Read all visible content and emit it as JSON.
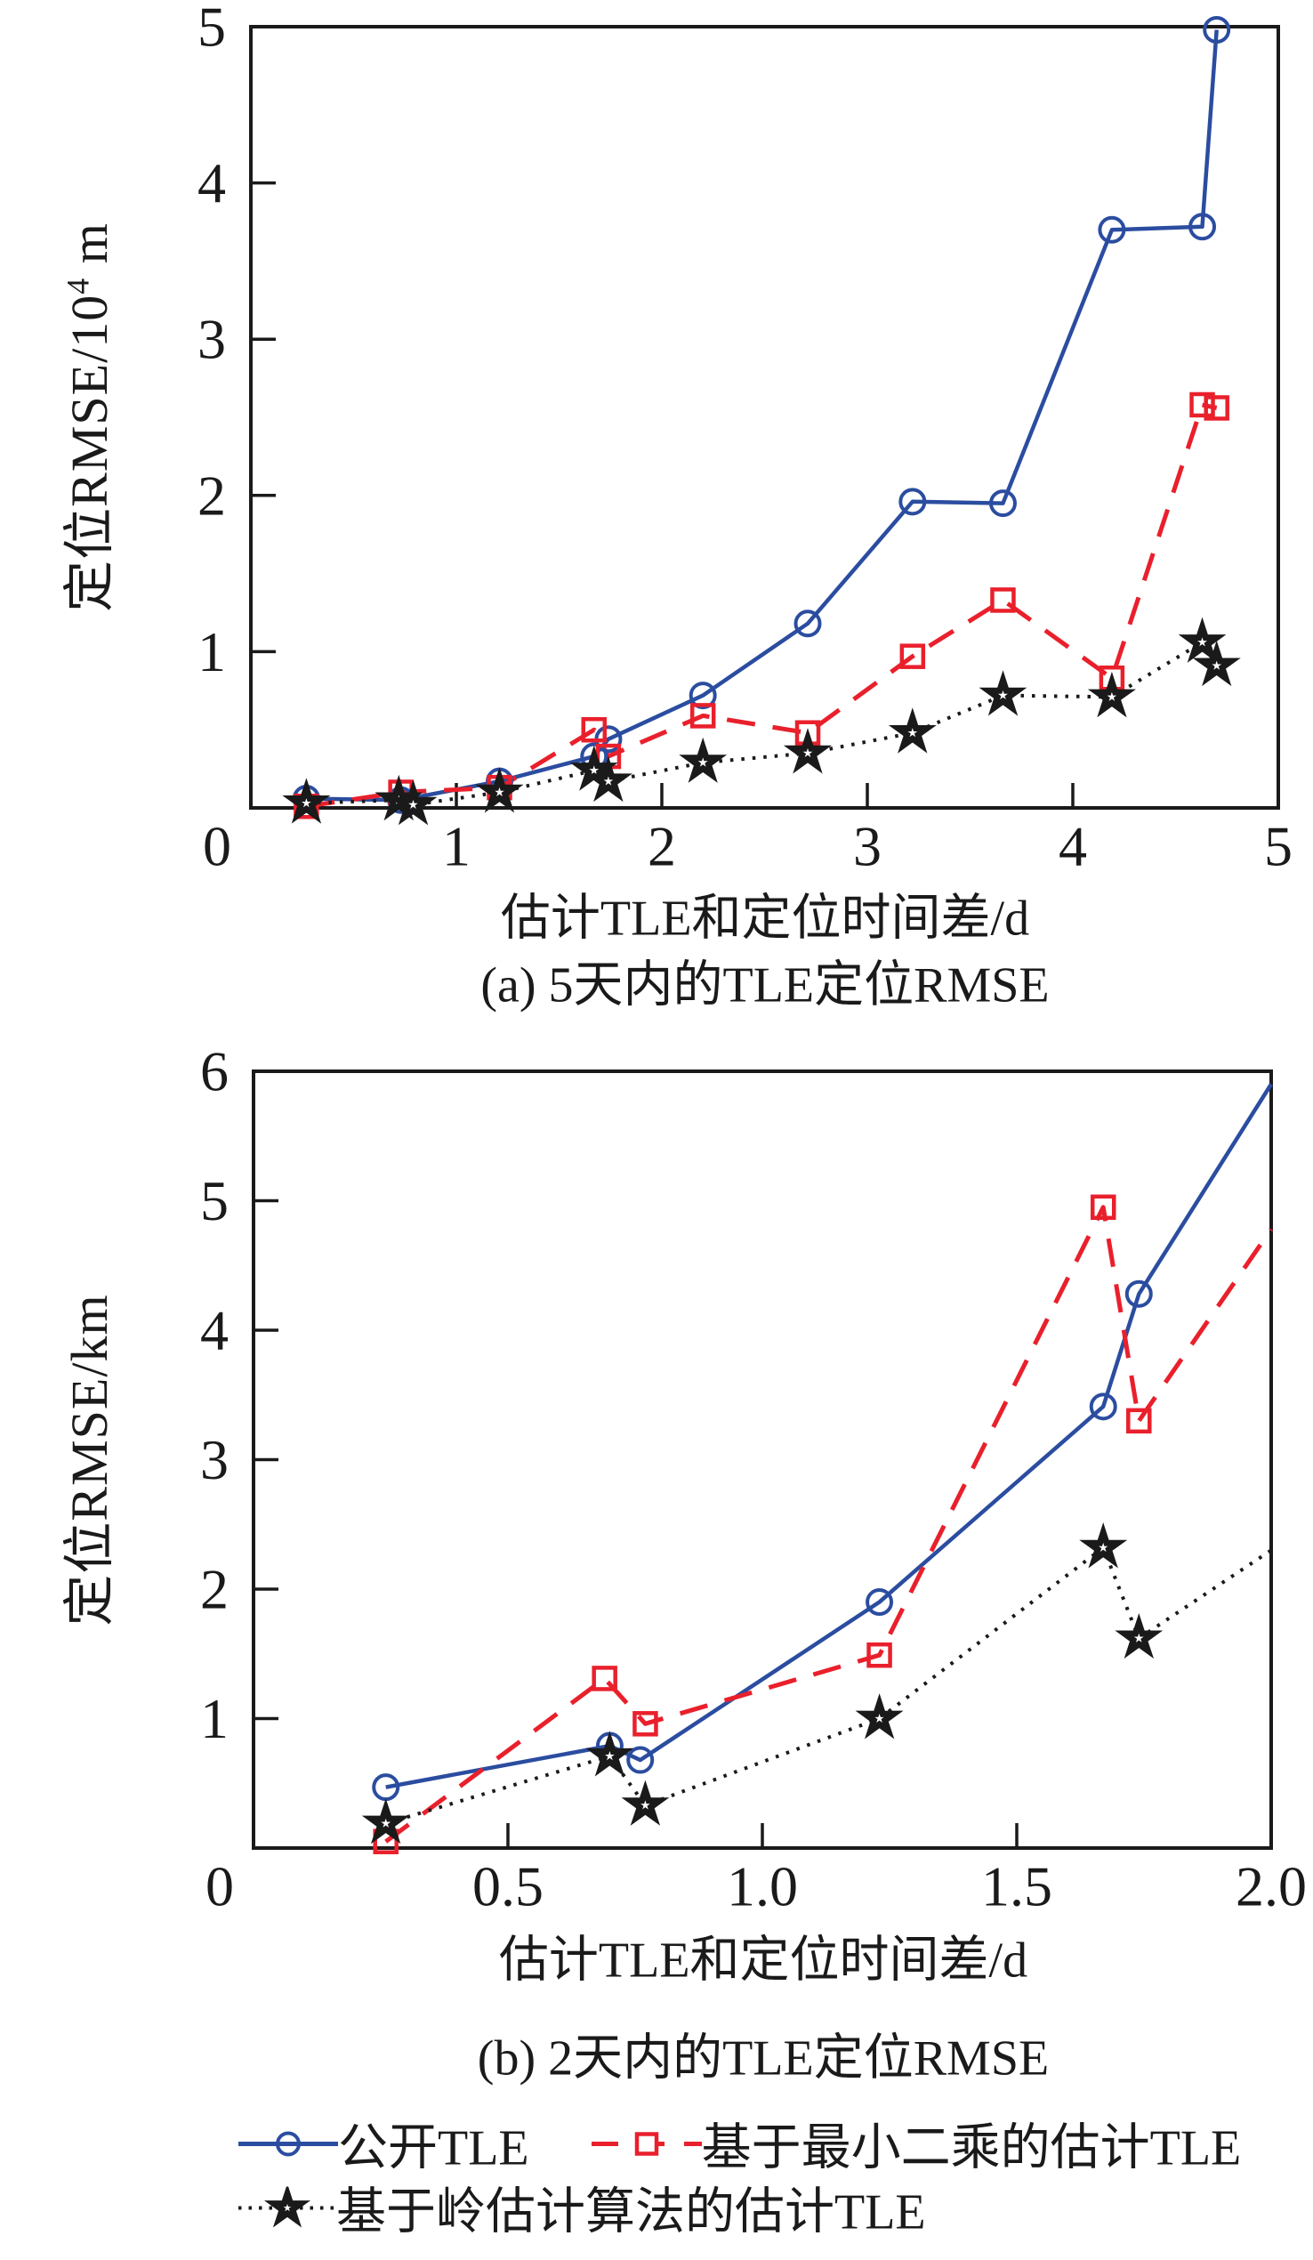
{
  "figure": {
    "background": "#ffffff",
    "axis_color": "#1a1a1a"
  },
  "colors": {
    "blue": "#2b4da0",
    "red": "#e9202c",
    "black": "#1a1a1a",
    "white": "#ffffff"
  },
  "chart_data": [
    {
      "id": "a",
      "type": "line",
      "title": "(a) 5天内的TLE定位RMSE",
      "xlabel": "估计TLE和定位时间差/d",
      "ylabel": "定位RMSE/10⁴ m",
      "ylabel_parts": {
        "base": "定位RMSE/10",
        "sup": "4",
        "tail": " m"
      },
      "xlim": [
        0,
        5
      ],
      "ylim": [
        0,
        5
      ],
      "xticks": [
        0,
        1,
        2,
        3,
        4,
        5
      ],
      "xtick_labels": [
        "0",
        "1",
        "2",
        "3",
        "4",
        "5"
      ],
      "yticks": [
        1,
        2,
        3,
        4,
        5
      ],
      "ytick_labels": [
        "1",
        "2",
        "3",
        "4",
        "5"
      ],
      "grid": false,
      "legend_position": "below-figure",
      "series": [
        {
          "name": "公开TLE",
          "slug": "public-tle",
          "color": "blue",
          "marker": "circle",
          "line": "solid",
          "points": [
            [
              0.27,
              0.06
            ],
            [
              0.73,
              0.05
            ],
            [
              1.21,
              0.17
            ],
            [
              1.67,
              0.33
            ],
            [
              1.74,
              0.44
            ],
            [
              2.2,
              0.72
            ],
            [
              2.71,
              1.18
            ],
            [
              3.22,
              1.96
            ],
            [
              3.66,
              1.95
            ],
            [
              4.19,
              3.7
            ],
            [
              4.63,
              3.72
            ],
            [
              4.7,
              4.98
            ]
          ]
        },
        {
          "name": "基于最小二乘的估计TLE",
          "slug": "ls-tle",
          "color": "red",
          "marker": "square",
          "line": "dashed",
          "points": [
            [
              0.27,
              0.01
            ],
            [
              0.73,
              0.1
            ],
            [
              1.21,
              0.13
            ],
            [
              1.67,
              0.5
            ],
            [
              1.74,
              0.33
            ],
            [
              2.2,
              0.59
            ],
            [
              2.71,
              0.48
            ],
            [
              3.22,
              0.97
            ],
            [
              3.66,
              1.33
            ],
            [
              4.19,
              0.83
            ],
            [
              4.63,
              2.58
            ],
            [
              4.7,
              2.56
            ]
          ]
        },
        {
          "name": "基于岭估计算法的估计TLE",
          "slug": "ridge-tle",
          "color": "black",
          "marker": "star",
          "line": "dotted",
          "points": [
            [
              0.27,
              0.03
            ],
            [
              0.72,
              0.05
            ],
            [
              0.79,
              0.02
            ],
            [
              1.21,
              0.1
            ],
            [
              1.67,
              0.24
            ],
            [
              1.74,
              0.17
            ],
            [
              2.2,
              0.29
            ],
            [
              2.71,
              0.35
            ],
            [
              3.22,
              0.48
            ],
            [
              3.66,
              0.72
            ],
            [
              4.19,
              0.71
            ],
            [
              4.63,
              1.06
            ],
            [
              4.7,
              0.91
            ]
          ]
        }
      ]
    },
    {
      "id": "b",
      "type": "line",
      "title": "(b) 2天内的TLE定位RMSE",
      "xlabel": "估计TLE和定位时间差/d",
      "ylabel": "定位RMSE/km",
      "ylabel_parts": {
        "base": "定位RMSE/km",
        "sup": "",
        "tail": ""
      },
      "xlim": [
        0,
        2
      ],
      "ylim": [
        0,
        6
      ],
      "xticks": [
        0,
        0.5,
        1,
        1.5,
        2
      ],
      "xtick_labels": [
        "0",
        "0.5",
        "1.0",
        "1.5",
        "2.0"
      ],
      "yticks": [
        1,
        2,
        3,
        4,
        5,
        6
      ],
      "ytick_labels": [
        "1",
        "2",
        "3",
        "4",
        "5",
        "6"
      ],
      "grid": false,
      "legend_position": "below-figure",
      "series": [
        {
          "name": "公开TLE",
          "slug": "public-tle",
          "color": "blue",
          "marker": "circle",
          "line": "solid",
          "points": [
            [
              0.26,
              0.47
            ],
            [
              0.7,
              0.79
            ],
            [
              0.76,
              0.68
            ],
            [
              1.23,
              1.9
            ],
            [
              1.67,
              3.41
            ],
            [
              1.74,
              4.28
            ]
          ],
          "tail": [
            2.0,
            5.9
          ]
        },
        {
          "name": "基于最小二乘的估计TLE",
          "slug": "ls-tle",
          "color": "red",
          "marker": "square",
          "line": "dashed",
          "points": [
            [
              0.26,
              0.05
            ],
            [
              0.69,
              1.31
            ],
            [
              0.77,
              0.96
            ],
            [
              1.23,
              1.49
            ],
            [
              1.67,
              4.95
            ],
            [
              1.74,
              3.3
            ]
          ],
          "tail": [
            2.0,
            4.78
          ]
        },
        {
          "name": "基于岭估计算法的估计TLE",
          "slug": "ridge-tle",
          "color": "black",
          "marker": "star",
          "line": "dotted",
          "points": [
            [
              0.26,
              0.19
            ],
            [
              0.7,
              0.71
            ],
            [
              0.77,
              0.33
            ],
            [
              1.23,
              1.0
            ],
            [
              1.67,
              2.32
            ],
            [
              1.74,
              1.62
            ]
          ],
          "tail": [
            2.0,
            2.3
          ]
        }
      ]
    }
  ],
  "legend": {
    "rows": [
      [
        "公开TLE",
        "基于最小二乘的估计TLE"
      ],
      [
        "基于岭估计算法的估计TLE"
      ]
    ]
  }
}
